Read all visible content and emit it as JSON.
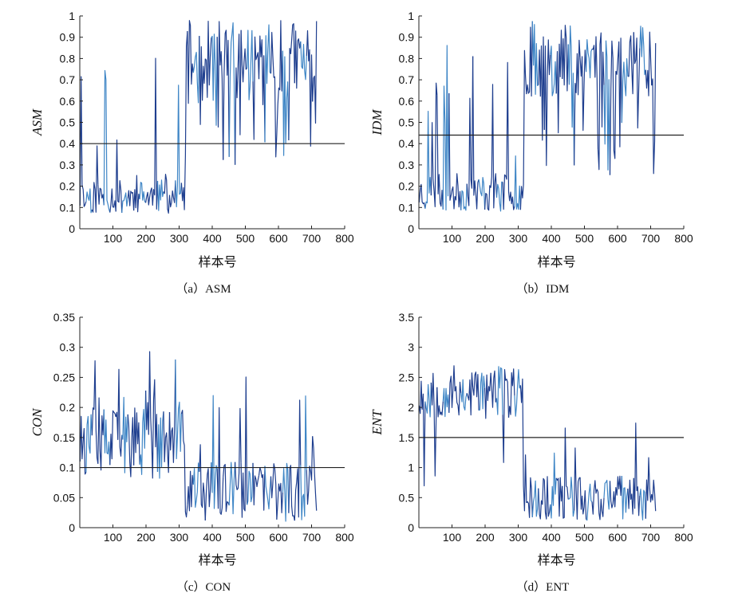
{
  "colors": {
    "series_dark": "#1f3f8f",
    "series_light": "#3f86c6",
    "threshold": "#222222",
    "axis": "#222222"
  },
  "chart_data": [
    {
      "type": "line",
      "caption": "（a）ASM",
      "ylabel": "ASM",
      "xlabel": "样本号",
      "xlim": [
        0,
        800
      ],
      "ylim": [
        0,
        1
      ],
      "xticks": [
        100,
        200,
        300,
        400,
        500,
        600,
        700,
        800
      ],
      "yticks": [
        0,
        0.1,
        0.2,
        0.3,
        0.4,
        0.5,
        0.6,
        0.7,
        0.8,
        0.9,
        1
      ],
      "ytick_labels": [
        "0",
        "0.1",
        "0.2",
        "0.3",
        "0.4",
        "0.5",
        "0.6",
        "0.7",
        "0.8",
        "0.9",
        "1"
      ],
      "threshold": 0.4,
      "x_start": 1,
      "x_end": 715,
      "step": 3,
      "segments": [
        {
          "until": 318,
          "base": 0.15,
          "noise": 0.08,
          "spike_prob": 0.08,
          "spike_min": 0.25,
          "spike_max": 0.9
        },
        {
          "until": 715,
          "base": 0.78,
          "noise": 0.2,
          "dip_prob": 0.12,
          "dip_min": 0.3,
          "dip_max": 0.5,
          "cap": 1.0
        }
      ],
      "seed": 11
    },
    {
      "type": "line",
      "caption": "（b）IDM",
      "ylabel": "IDM",
      "xlabel": "样本号",
      "xlim": [
        0,
        800
      ],
      "ylim": [
        0,
        1
      ],
      "xticks": [
        100,
        200,
        300,
        400,
        500,
        600,
        700,
        800
      ],
      "yticks": [
        0,
        0.1,
        0.2,
        0.3,
        0.4,
        0.5,
        0.6,
        0.7,
        0.8,
        0.9,
        1
      ],
      "ytick_labels": [
        "0",
        "0.1",
        "0.2",
        "0.3",
        "0.4",
        "0.5",
        "0.6",
        "0.7",
        "0.8",
        "0.9",
        "1"
      ],
      "threshold": 0.44,
      "x_start": 1,
      "x_end": 715,
      "step": 3,
      "segments": [
        {
          "until": 318,
          "base": 0.17,
          "noise": 0.09,
          "spike_prob": 0.08,
          "spike_min": 0.3,
          "spike_max": 0.9
        },
        {
          "until": 715,
          "base": 0.8,
          "noise": 0.18,
          "dip_prob": 0.12,
          "dip_min": 0.25,
          "dip_max": 0.5,
          "cap": 1.0
        }
      ],
      "seed": 23
    },
    {
      "type": "line",
      "caption": "（c）CON",
      "ylabel": "CON",
      "xlabel": "样本号",
      "xlim": [
        0,
        800
      ],
      "ylim": [
        0,
        0.35
      ],
      "xticks": [
        100,
        200,
        300,
        400,
        500,
        600,
        700,
        800
      ],
      "yticks": [
        0,
        0.05,
        0.1,
        0.15,
        0.2,
        0.25,
        0.3,
        0.35
      ],
      "ytick_labels": [
        "0",
        "0.05",
        "0.1",
        "0.15",
        "0.2",
        "0.25",
        "0.3",
        "0.35"
      ],
      "threshold": 0.1,
      "x_start": 1,
      "x_end": 715,
      "step": 3,
      "segments": [
        {
          "until": 318,
          "base": 0.14,
          "noise": 0.06,
          "spike_prob": 0.07,
          "spike_min": 0.18,
          "spike_max": 0.3,
          "floor": 0.01
        },
        {
          "until": 715,
          "base": 0.06,
          "noise": 0.05,
          "spike_prob": 0.06,
          "spike_min": 0.12,
          "spike_max": 0.27,
          "floor": 0.0
        }
      ],
      "seed": 37
    },
    {
      "type": "line",
      "caption": "（d）ENT",
      "ylabel": "ENT",
      "xlabel": "样本号",
      "xlim": [
        0,
        800
      ],
      "ylim": [
        0,
        3.5
      ],
      "xticks": [
        100,
        200,
        300,
        400,
        500,
        600,
        700,
        800
      ],
      "yticks": [
        0,
        0.5,
        1,
        1.5,
        2,
        2.5,
        3,
        3.5
      ],
      "ytick_labels": [
        "0",
        "0.5",
        "1",
        "1.5",
        "2",
        "2.5",
        "3",
        "3.5"
      ],
      "threshold": 1.5,
      "x_start": 1,
      "x_end": 715,
      "step": 3,
      "segments": [
        {
          "until": 318,
          "base": 2.25,
          "noise": 0.45,
          "dip_prob": 0.08,
          "dip_min": 0.25,
          "dip_max": 1.4,
          "cap": 3.1
        },
        {
          "until": 715,
          "base": 0.5,
          "noise": 0.38,
          "spike_prob": 0.05,
          "spike_min": 1.0,
          "spike_max": 1.85,
          "floor": 0.05
        }
      ],
      "seed": 53
    }
  ]
}
